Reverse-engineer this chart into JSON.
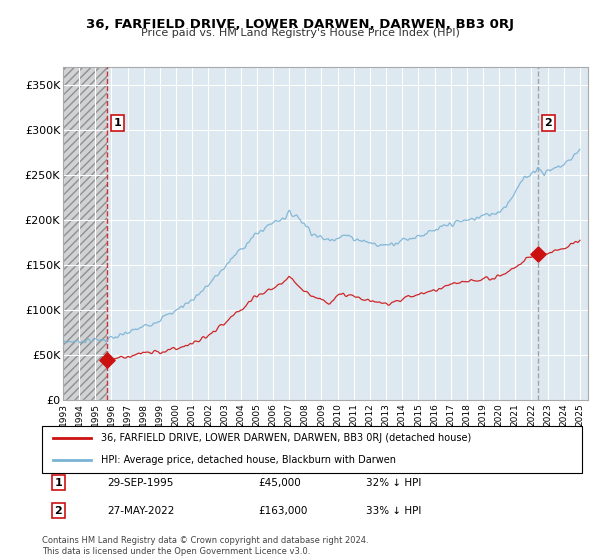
{
  "title": "36, FARFIELD DRIVE, LOWER DARWEN, DARWEN, BB3 0RJ",
  "subtitle": "Price paid vs. HM Land Registry's House Price Index (HPI)",
  "ylim": [
    0,
    370000
  ],
  "yticks": [
    0,
    50000,
    100000,
    150000,
    200000,
    250000,
    300000,
    350000
  ],
  "ytick_labels": [
    "£0",
    "£50K",
    "£100K",
    "£150K",
    "£200K",
    "£250K",
    "£300K",
    "£350K"
  ],
  "hpi_color": "#7ab3d4",
  "property_color": "#cc1111",
  "dashed_color_sale1": "#cc1111",
  "dashed_color_sale2": "#999999",
  "background_color": "#dde8f0",
  "hatch_color": "#c8c8c8",
  "legend_label_property": "36, FARFIELD DRIVE, LOWER DARWEN, DARWEN, BB3 0RJ (detached house)",
  "legend_label_hpi": "HPI: Average price, detached house, Blackburn with Darwen",
  "annotation1_label": "1",
  "annotation1_date": "29-SEP-1995",
  "annotation1_price": "£45,000",
  "annotation1_hpi": "32% ↓ HPI",
  "annotation2_label": "2",
  "annotation2_date": "27-MAY-2022",
  "annotation2_price": "£163,000",
  "annotation2_hpi": "33% ↓ HPI",
  "footnote": "Contains HM Land Registry data © Crown copyright and database right 2024.\nThis data is licensed under the Open Government Licence v3.0.",
  "sale1_x": 1995.75,
  "sale1_y": 45000,
  "sale2_x": 2022.4,
  "sale2_y": 163000,
  "xlim_left": 1993.0,
  "xlim_right": 2025.5,
  "hatch_cutoff": 1995.75
}
